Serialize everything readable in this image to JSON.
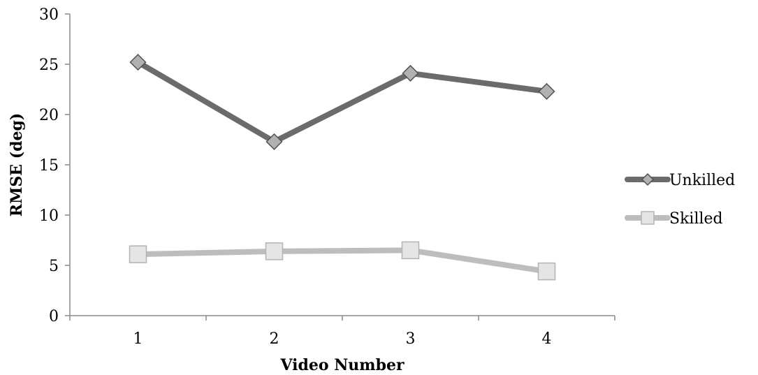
{
  "chart_data": {
    "type": "line",
    "title": "",
    "xlabel": "Video Number",
    "ylabel": "RMSE (deg)",
    "categories": [
      "1",
      "2",
      "3",
      "4"
    ],
    "ylim": [
      0,
      30
    ],
    "yticks": [
      0,
      5,
      10,
      15,
      20,
      25,
      30
    ],
    "grid": false,
    "legend_position": "right",
    "series": [
      {
        "name": "Unkilled",
        "values": [
          25.2,
          17.3,
          24.1,
          22.3
        ],
        "color": "#6b6b6b",
        "marker": "diamond"
      },
      {
        "name": "Skilled",
        "values": [
          6.1,
          6.4,
          6.5,
          4.4
        ],
        "color": "#bdbdbd",
        "marker": "square"
      }
    ]
  }
}
